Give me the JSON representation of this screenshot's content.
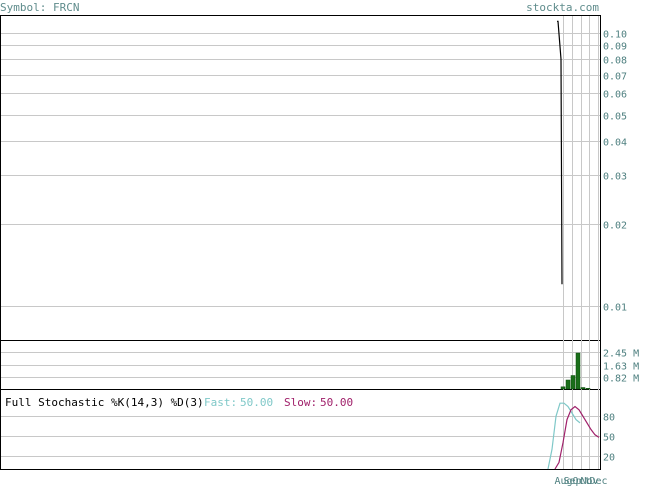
{
  "header": {
    "symbol_text": "Symbol: FRCN",
    "site_text": "stockta.com"
  },
  "colors": {
    "header_text": "#5f8c8c",
    "axis_text": "#4f8080",
    "grid": "#c8c8c8",
    "frame": "#000000",
    "volume_bar": "#1a6e1a",
    "fast_line": "#7fc8c8",
    "slow_line": "#a0206a"
  },
  "chart_data": [
    {
      "type": "line",
      "panel": "price",
      "scale": "log",
      "ylim": [
        0.0075,
        0.115
      ],
      "y_ticks": [
        0.1,
        0.09,
        0.08,
        0.07,
        0.06,
        0.05,
        0.04,
        0.03,
        0.02,
        0.01
      ],
      "y_tick_labels": [
        "0.10",
        "0.09",
        "0.08",
        "0.07",
        "0.06",
        "0.05",
        "0.04",
        "0.03",
        "0.02",
        "0.01"
      ],
      "x_labels": [
        "Aug",
        "Sep",
        "Oct",
        "Nov",
        "Dec"
      ],
      "series": [
        {
          "values": [
            0.11,
            0.11,
            0.08,
            0.012
          ]
        }
      ]
    },
    {
      "type": "bar",
      "panel": "volume",
      "ylim": [
        0,
        3.2
      ],
      "y_ticks": [
        2.45,
        1.63,
        0.82
      ],
      "y_tick_labels": [
        "2.45 M",
        "1.63 M",
        "0.82 M"
      ],
      "values": [
        0.15,
        0.6,
        0.9,
        2.4,
        0.1,
        0.05
      ]
    },
    {
      "type": "line",
      "panel": "stochastic",
      "title": "Full Stochastic %K(14,3) %D(3)",
      "ylim": [
        0,
        120
      ],
      "y_ticks": [
        80,
        50,
        20
      ],
      "y_tick_labels": [
        "80",
        "50",
        "20"
      ],
      "fast_label": "Fast:",
      "fast_value": "50.00",
      "slow_label": "Slow:",
      "slow_value": "50.00",
      "series": [
        {
          "values": [
            0,
            30,
            80,
            100,
            100,
            95,
            85,
            75,
            70
          ]
        },
        {
          "values": [
            0,
            10,
            40,
            75,
            90,
            95,
            90,
            80,
            70,
            60,
            52,
            48
          ]
        }
      ]
    }
  ]
}
